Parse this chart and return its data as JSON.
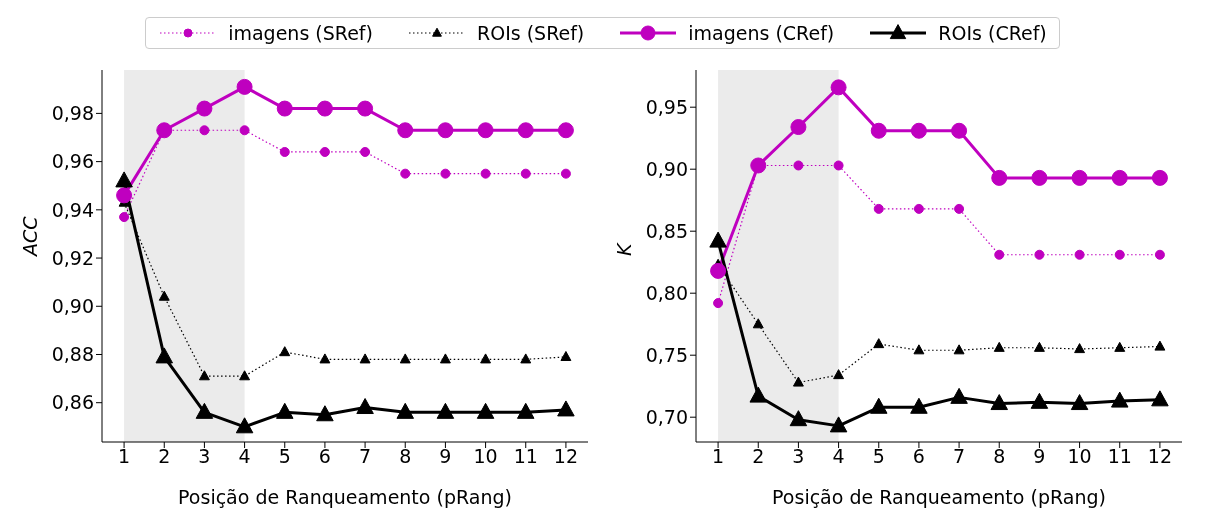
{
  "chart_data": [
    {
      "type": "line",
      "ylabel": "ACC",
      "xlabel": "Posição de Ranqueamento (pRang)",
      "x": [
        1,
        2,
        3,
        4,
        5,
        6,
        7,
        8,
        9,
        10,
        11,
        12
      ],
      "xlim": [
        0.45,
        12.55
      ],
      "xticks": [
        1,
        2,
        3,
        4,
        5,
        6,
        7,
        8,
        9,
        10,
        11,
        12
      ],
      "ylim": [
        0.8437,
        0.998
      ],
      "yticks": [
        {
          "value": 0.86,
          "label": "0,86"
        },
        {
          "value": 0.88,
          "label": "0,88"
        },
        {
          "value": 0.9,
          "label": "0,90"
        },
        {
          "value": 0.92,
          "label": "0,92"
        },
        {
          "value": 0.94,
          "label": "0,94"
        },
        {
          "value": 0.96,
          "label": "0,96"
        },
        {
          "value": 0.98,
          "label": "0,98"
        }
      ],
      "grid": false,
      "legend": "top",
      "bands": [
        {
          "axis": "x",
          "from": 1,
          "to": 4,
          "color": "#ebebeb"
        }
      ],
      "series": [
        {
          "name": "imagens (SRef)",
          "color": "#bf00bf",
          "marker": "circle",
          "line_style": "dotted",
          "values": [
            0.937,
            0.973,
            0.973,
            0.973,
            0.964,
            0.964,
            0.964,
            0.955,
            0.955,
            0.955,
            0.955,
            0.955
          ]
        },
        {
          "name": "ROIs (SRef)",
          "color": "#000000",
          "marker": "triangle",
          "line_style": "dotted",
          "values": [
            0.943,
            0.904,
            0.871,
            0.871,
            0.881,
            0.878,
            0.878,
            0.878,
            0.878,
            0.878,
            0.878,
            0.879
          ]
        },
        {
          "name": "imagens (CRef)",
          "color": "#bf00bf",
          "marker": "circle",
          "line_style": "solid",
          "values": [
            0.946,
            0.973,
            0.982,
            0.991,
            0.982,
            0.982,
            0.982,
            0.973,
            0.973,
            0.973,
            0.973,
            0.973
          ]
        },
        {
          "name": "ROIs (CRef)",
          "color": "#000000",
          "marker": "triangle",
          "line_style": "solid",
          "values": [
            0.952,
            0.879,
            0.856,
            0.85,
            0.856,
            0.855,
            0.858,
            0.856,
            0.856,
            0.856,
            0.856,
            0.857
          ]
        }
      ]
    },
    {
      "type": "line",
      "ylabel": "K",
      "xlabel": "Posição de Ranqueamento (pRang)",
      "x": [
        1,
        2,
        3,
        4,
        5,
        6,
        7,
        8,
        9,
        10,
        11,
        12
      ],
      "xlim": [
        0.45,
        12.55
      ],
      "xticks": [
        1,
        2,
        3,
        4,
        5,
        6,
        7,
        8,
        9,
        10,
        11,
        12
      ],
      "ylim": [
        0.68,
        0.98
      ],
      "yticks": [
        {
          "value": 0.7,
          "label": "0,70"
        },
        {
          "value": 0.75,
          "label": "0,75"
        },
        {
          "value": 0.8,
          "label": "0,80"
        },
        {
          "value": 0.85,
          "label": "0,85"
        },
        {
          "value": 0.9,
          "label": "0,90"
        },
        {
          "value": 0.95,
          "label": "0,95"
        }
      ],
      "grid": false,
      "legend": false,
      "bands": [
        {
          "axis": "x",
          "from": 1,
          "to": 4,
          "color": "#ebebeb"
        }
      ],
      "series": [
        {
          "color": "#bf00bf",
          "marker": "circle",
          "line_style": "dotted",
          "values": [
            0.792,
            0.903,
            0.903,
            0.903,
            0.868,
            0.868,
            0.868,
            0.831,
            0.831,
            0.831,
            0.831,
            0.831
          ]
        },
        {
          "color": "#000000",
          "marker": "triangle",
          "line_style": "dotted",
          "values": [
            0.823,
            0.775,
            0.728,
            0.734,
            0.759,
            0.754,
            0.754,
            0.756,
            0.756,
            0.755,
            0.756,
            0.757
          ]
        },
        {
          "color": "#bf00bf",
          "marker": "circle",
          "line_style": "solid",
          "values": [
            0.818,
            0.903,
            0.934,
            0.966,
            0.931,
            0.931,
            0.931,
            0.893,
            0.893,
            0.893,
            0.893,
            0.893
          ]
        },
        {
          "color": "#000000",
          "marker": "triangle",
          "line_style": "solid",
          "values": [
            0.842,
            0.717,
            0.698,
            0.693,
            0.708,
            0.708,
            0.716,
            0.711,
            0.712,
            0.711,
            0.713,
            0.714
          ]
        }
      ]
    }
  ]
}
